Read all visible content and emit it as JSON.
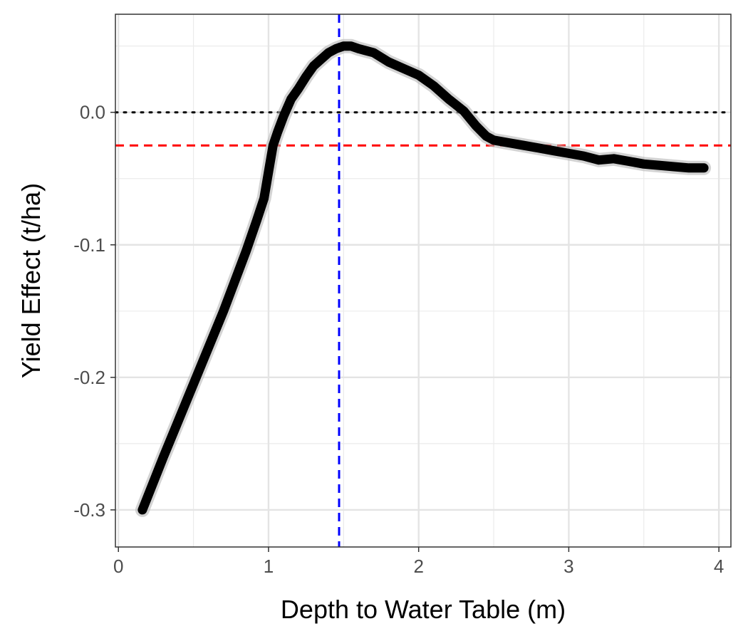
{
  "chart_data": {
    "type": "line",
    "xlabel": "Depth to Water Table (m)",
    "ylabel": "Yield Effect (t/ha)",
    "xlim": [
      -0.02,
      4.08
    ],
    "ylim": [
      -0.328,
      0.074
    ],
    "x_ticks": [
      0,
      1,
      2,
      3,
      4
    ],
    "x_tick_labels": [
      "0",
      "1",
      "2",
      "3",
      "4"
    ],
    "y_ticks": [
      -0.3,
      -0.2,
      -0.1,
      0.0
    ],
    "y_tick_labels": [
      "-0.3",
      "-0.2",
      "-0.1",
      "0.0"
    ],
    "grid": true,
    "series": [
      {
        "color": "#000000",
        "x": [
          0.16,
          0.3,
          0.5,
          0.7,
          0.85,
          0.92,
          0.97,
          1.0,
          1.03,
          1.06,
          1.1,
          1.15,
          1.2,
          1.25,
          1.3,
          1.35,
          1.4,
          1.45,
          1.5,
          1.55,
          1.6,
          1.7,
          1.8,
          1.9,
          2.0,
          2.1,
          2.2,
          2.3,
          2.38,
          2.45,
          2.5,
          2.6,
          2.7,
          2.8,
          2.9,
          3.0,
          3.1,
          3.2,
          3.3,
          3.4,
          3.5,
          3.6,
          3.7,
          3.8,
          3.9
        ],
        "y": [
          -0.3,
          -0.26,
          -0.205,
          -0.15,
          -0.105,
          -0.082,
          -0.065,
          -0.045,
          -0.025,
          -0.015,
          -0.003,
          0.01,
          0.018,
          0.027,
          0.035,
          0.04,
          0.045,
          0.048,
          0.05,
          0.05,
          0.048,
          0.045,
          0.038,
          0.033,
          0.028,
          0.02,
          0.01,
          0.001,
          -0.01,
          -0.018,
          -0.021,
          -0.023,
          -0.025,
          -0.027,
          -0.029,
          -0.031,
          -0.033,
          -0.036,
          -0.035,
          -0.037,
          -0.039,
          -0.04,
          -0.041,
          -0.042,
          -0.042
        ]
      }
    ],
    "reference_lines": [
      {
        "orientation": "horizontal",
        "value": 0.0,
        "color": "#000000",
        "style": "dotted"
      },
      {
        "orientation": "horizontal",
        "value": -0.025,
        "color": "#ff0000",
        "style": "dashed"
      },
      {
        "orientation": "vertical",
        "value": 1.47,
        "color": "#0000ff",
        "style": "dashed"
      }
    ]
  }
}
